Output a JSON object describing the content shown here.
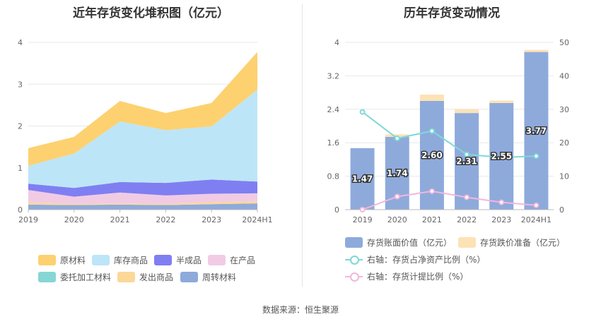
{
  "chart_data": [
    {
      "type": "area",
      "stacked": true,
      "title": "近年存货变化堆积图（亿元）",
      "categories": [
        "2019",
        "2020",
        "2021",
        "2022",
        "2023",
        "2024H1"
      ],
      "ylim": [
        0,
        4
      ],
      "yticks": [
        "0",
        "1",
        "2",
        "3",
        "4"
      ],
      "series": [
        {
          "name": "周转材料",
          "color": "#8eaadb",
          "values": [
            0.12,
            0.11,
            0.12,
            0.11,
            0.13,
            0.15
          ]
        },
        {
          "name": "发出商品",
          "color": "#fbd898",
          "values": [
            0.05,
            0.03,
            0.03,
            0.03,
            0.05,
            0.05
          ]
        },
        {
          "name": "委托加工材料",
          "color": "#87d6d6",
          "values": [
            0.0,
            0.0,
            0.0,
            0.0,
            0.0,
            0.0
          ]
        },
        {
          "name": "在产品",
          "color": "#f1cbe4",
          "values": [
            0.3,
            0.17,
            0.26,
            0.2,
            0.2,
            0.19
          ]
        },
        {
          "name": "半成品",
          "color": "#7f7ff2",
          "values": [
            0.15,
            0.21,
            0.25,
            0.3,
            0.34,
            0.28
          ]
        },
        {
          "name": "库存商品",
          "color": "#bde5f8",
          "values": [
            0.43,
            0.82,
            1.45,
            1.26,
            1.27,
            2.2
          ]
        },
        {
          "name": "原材料",
          "color": "#fdd170",
          "values": [
            0.42,
            0.4,
            0.49,
            0.41,
            0.56,
            0.9
          ]
        }
      ],
      "legend_order": [
        "原材料",
        "库存商品",
        "半成品",
        "在产品",
        "委托加工材料",
        "发出商品",
        "周转材料"
      ]
    },
    {
      "type": "bar",
      "title": "历年存货变动情况",
      "categories": [
        "2019",
        "2020",
        "2021",
        "2022",
        "2023",
        "2024H1"
      ],
      "ylim_left": [
        0,
        4
      ],
      "yticks_left": [
        "0",
        "0.8",
        "1.6",
        "2.4",
        "3.2",
        "4"
      ],
      "ylim_right": [
        0,
        50
      ],
      "yticks_right": [
        "0",
        "10",
        "20",
        "30",
        "40",
        "50"
      ],
      "bars": [
        {
          "name": "存货账面价值（亿元）",
          "color": "#8eaadb",
          "values": [
            1.47,
            1.74,
            2.6,
            2.31,
            2.55,
            3.77
          ],
          "labels": [
            "1.47",
            "1.74",
            "2.60",
            "2.31",
            "2.55",
            "3.77"
          ]
        },
        {
          "name": "存货跌价准备（亿元）",
          "color": "#fde2b6",
          "values": [
            0.0,
            0.06,
            0.15,
            0.09,
            0.06,
            0.05
          ]
        }
      ],
      "lines": [
        {
          "name": "右轴：存货占净资产比例（%）",
          "color": "#7fd8d8",
          "axis": "right",
          "values": [
            29.2,
            21.3,
            23.5,
            16.5,
            15.6,
            16.0
          ]
        },
        {
          "name": "右轴：存货计提比例（%）",
          "color": "#f2b7dc",
          "axis": "right",
          "values": [
            0.0,
            3.9,
            5.5,
            3.7,
            2.2,
            1.3
          ]
        }
      ]
    }
  ],
  "source": "数据来源：恒生聚源"
}
